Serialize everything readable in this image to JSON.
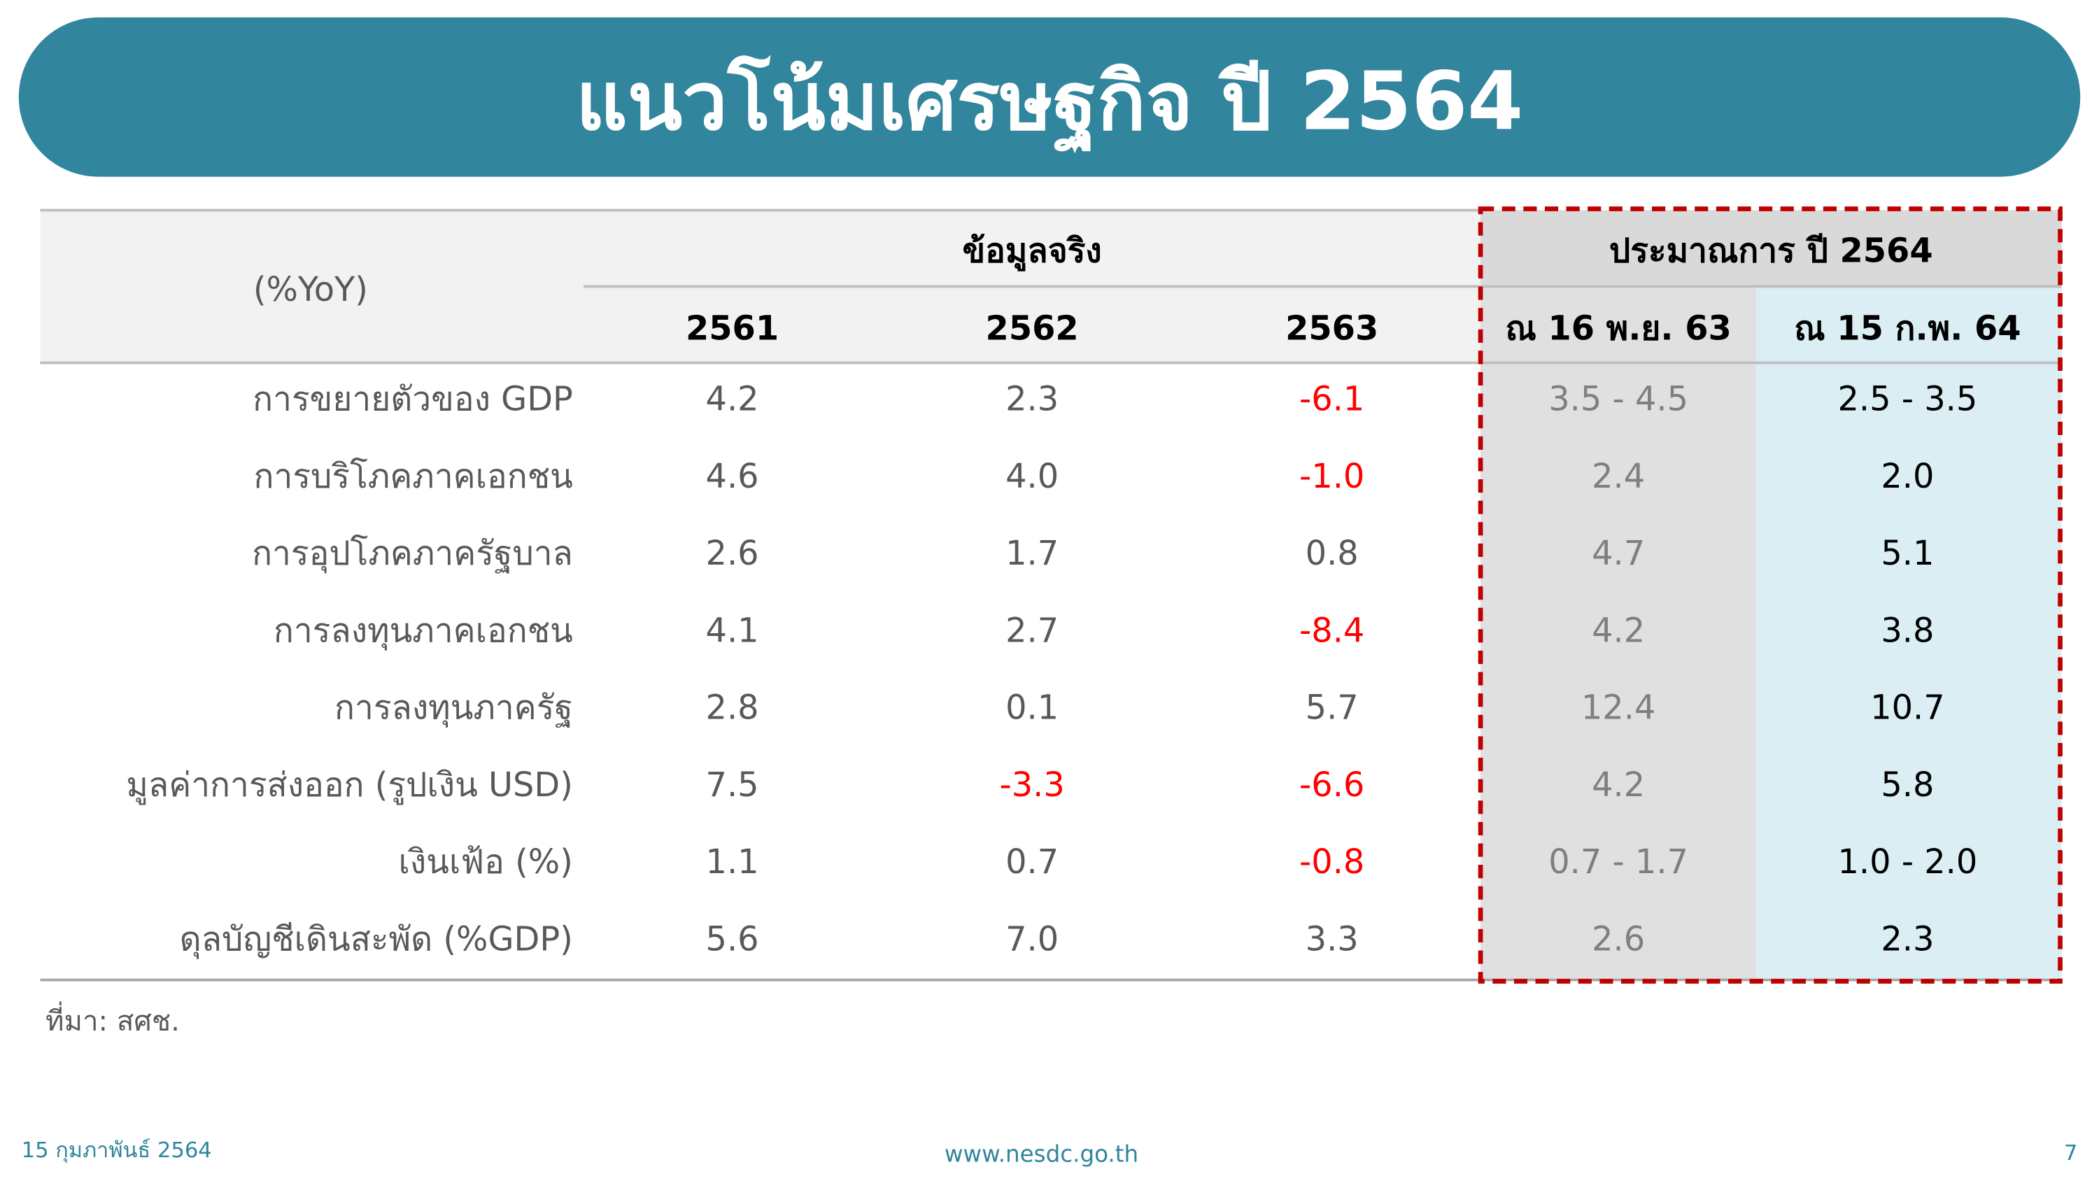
{
  "header": {
    "title": "แนวโน้มเศรษฐกิจ ปี 2564"
  },
  "table": {
    "unit_label": "(%YoY)",
    "group_headers": [
      "ข้อมูลจริง",
      "ประมาณการ ปี 2564"
    ],
    "columns": [
      "2561",
      "2562",
      "2563",
      "ณ 16 พ.ย. 63",
      "ณ 15 ก.พ. 64"
    ],
    "rows": [
      [
        "การขยายตัวของ GDP",
        "4.2",
        "2.3",
        "-6.1",
        "3.5 - 4.5",
        "2.5 - 3.5"
      ],
      [
        "การบริโภคภาคเอกชน",
        "4.6",
        "4.0",
        "-1.0",
        "2.4",
        "2.0"
      ],
      [
        "การอุปโภคภาครัฐบาล",
        "2.6",
        "1.7",
        "0.8",
        "4.7",
        "5.1"
      ],
      [
        "การลงทุนภาคเอกชน",
        "4.1",
        "2.7",
        "-8.4",
        "4.2",
        "3.8"
      ],
      [
        "การลงทุนภาครัฐ",
        "2.8",
        "0.1",
        "5.7",
        "12.4",
        "10.7"
      ],
      [
        "มูลค่าการส่งออก (รูปเงิน USD)",
        "7.5",
        "-3.3",
        "-6.6",
        "4.2",
        "5.8"
      ],
      [
        "เงินเฟ้อ (%)",
        "1.1",
        "0.7",
        "-0.8",
        "0.7 - 1.7",
        "1.0 - 2.0"
      ],
      [
        "ดุลบัญชีเดินสะพัด (%GDP)",
        "5.6",
        "7.0",
        "3.3",
        "2.6",
        "2.3"
      ]
    ]
  },
  "source": "ที่มา: สศช.",
  "footer": {
    "date": "15 กุมภาพันธ์ 2564",
    "website": "www.nesdc.go.th",
    "page": "7"
  }
}
